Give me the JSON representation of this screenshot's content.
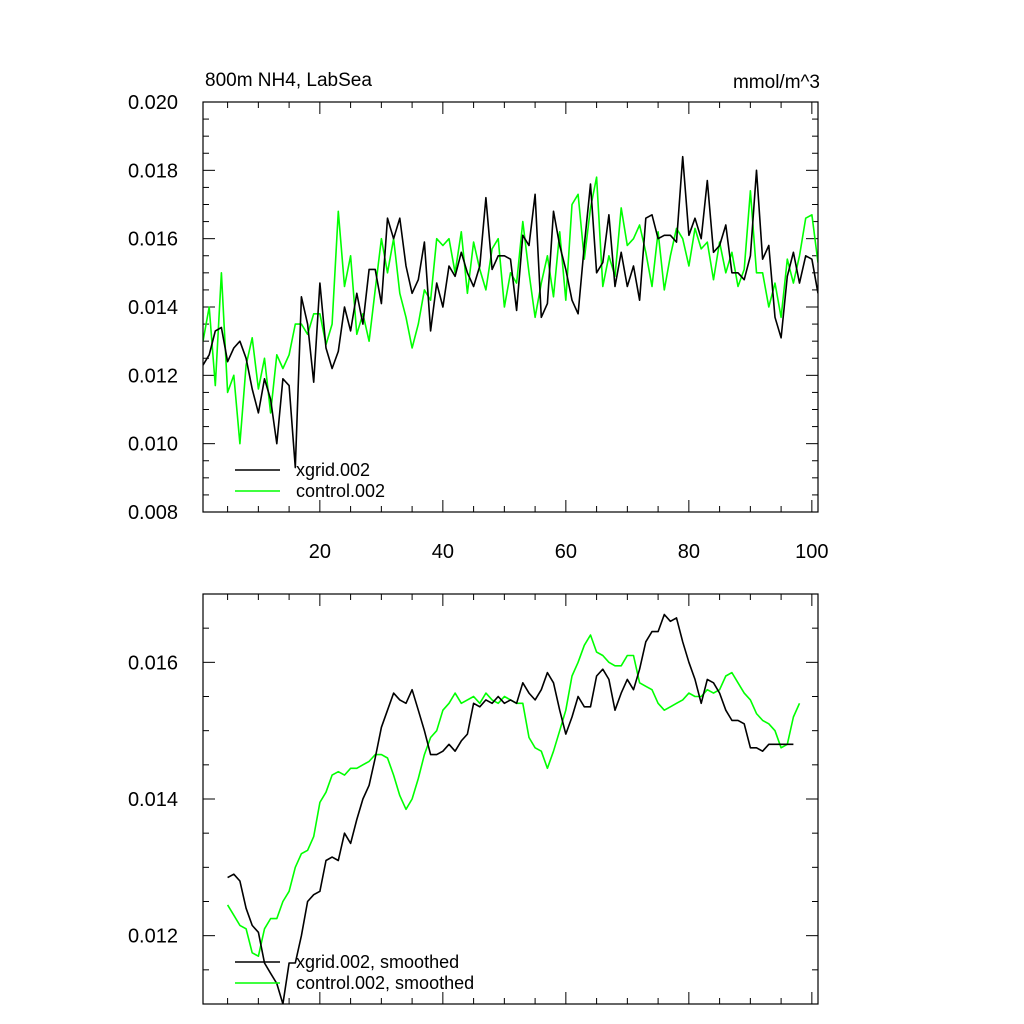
{
  "chart_data": [
    {
      "type": "line",
      "title": "800m NH4, LabSea",
      "units": "mmol/m^3",
      "xlim": [
        1,
        101
      ],
      "ylim": [
        0.008,
        0.02
      ],
      "x_ticks": [
        20,
        40,
        60,
        80,
        100
      ],
      "y_ticks": [
        0.008,
        0.01,
        0.012,
        0.014,
        0.016,
        0.018,
        0.02
      ],
      "y_tick_labels": [
        "0.008",
        "0.010",
        "0.012",
        "0.014",
        "0.016",
        "0.018",
        "0.020"
      ],
      "legend_position": "bottom-left",
      "series": [
        {
          "name": "xgrid.002",
          "color": "#000000",
          "x": [
            1,
            2,
            3,
            4,
            5,
            6,
            7,
            8,
            9,
            10,
            11,
            12,
            13,
            14,
            15,
            16,
            17,
            18,
            19,
            20,
            21,
            22,
            23,
            24,
            25,
            26,
            27,
            28,
            29,
            30,
            31,
            32,
            33,
            34,
            35,
            36,
            37,
            38,
            39,
            40,
            41,
            42,
            43,
            44,
            45,
            46,
            47,
            48,
            49,
            50,
            51,
            52,
            53,
            54,
            55,
            56,
            57,
            58,
            59,
            60,
            61,
            62,
            63,
            64,
            65,
            66,
            67,
            68,
            69,
            70,
            71,
            72,
            73,
            74,
            75,
            76,
            77,
            78,
            79,
            80,
            81,
            82,
            83,
            84,
            85,
            86,
            87,
            88,
            89,
            90,
            91,
            92,
            93,
            94,
            95,
            96,
            97,
            98,
            99,
            100,
            101
          ],
          "y": [
            0.0123,
            0.0126,
            0.0133,
            0.0134,
            0.0124,
            0.0128,
            0.013,
            0.0125,
            0.0116,
            0.0109,
            0.0119,
            0.0113,
            0.01,
            0.0119,
            0.0117,
            0.0093,
            0.0143,
            0.0135,
            0.0118,
            0.0147,
            0.0128,
            0.0122,
            0.0127,
            0.014,
            0.0133,
            0.0144,
            0.0135,
            0.0151,
            0.0151,
            0.0141,
            0.0166,
            0.016,
            0.0166,
            0.0152,
            0.0144,
            0.0148,
            0.0159,
            0.0133,
            0.0147,
            0.014,
            0.0152,
            0.0149,
            0.0156,
            0.015,
            0.0146,
            0.0152,
            0.0172,
            0.0151,
            0.0155,
            0.0155,
            0.0154,
            0.0139,
            0.0161,
            0.0158,
            0.0173,
            0.0137,
            0.0141,
            0.0168,
            0.0158,
            0.0151,
            0.0142,
            0.0138,
            0.0158,
            0.0176,
            0.015,
            0.0153,
            0.0167,
            0.0146,
            0.0156,
            0.0146,
            0.0152,
            0.0142,
            0.0166,
            0.0167,
            0.016,
            0.0161,
            0.0161,
            0.0159,
            0.0184,
            0.0161,
            0.0166,
            0.016,
            0.0177,
            0.0156,
            0.0158,
            0.0164,
            0.015,
            0.015,
            0.0148,
            0.0155,
            0.018,
            0.0154,
            0.0158,
            0.0137,
            0.0131,
            0.0149,
            0.0156,
            0.0147,
            0.0155,
            0.0154,
            0.0144
          ]
        },
        {
          "name": "control.002",
          "color": "#00ff00",
          "x": [
            1,
            2,
            3,
            4,
            5,
            6,
            7,
            8,
            9,
            10,
            11,
            12,
            13,
            14,
            15,
            16,
            17,
            18,
            19,
            20,
            21,
            22,
            23,
            24,
            25,
            26,
            27,
            28,
            29,
            30,
            31,
            32,
            33,
            34,
            35,
            36,
            37,
            38,
            39,
            40,
            41,
            42,
            43,
            44,
            45,
            46,
            47,
            48,
            49,
            50,
            51,
            52,
            53,
            54,
            55,
            56,
            57,
            58,
            59,
            60,
            61,
            62,
            63,
            64,
            65,
            66,
            67,
            68,
            69,
            70,
            71,
            72,
            73,
            74,
            75,
            76,
            77,
            78,
            79,
            80,
            81,
            82,
            83,
            84,
            85,
            86,
            87,
            88,
            89,
            90,
            91,
            92,
            93,
            94,
            95,
            96,
            97,
            98,
            99,
            100,
            101
          ],
          "y": [
            0.013,
            0.014,
            0.0117,
            0.015,
            0.0115,
            0.012,
            0.01,
            0.0123,
            0.0131,
            0.0116,
            0.0125,
            0.0109,
            0.0126,
            0.0122,
            0.0126,
            0.0135,
            0.0135,
            0.0132,
            0.0138,
            0.0138,
            0.0129,
            0.0135,
            0.0168,
            0.0146,
            0.0155,
            0.0132,
            0.0138,
            0.013,
            0.0145,
            0.016,
            0.015,
            0.016,
            0.0144,
            0.0137,
            0.0128,
            0.0135,
            0.0145,
            0.0142,
            0.016,
            0.0158,
            0.016,
            0.015,
            0.0162,
            0.0144,
            0.0159,
            0.0151,
            0.0145,
            0.0157,
            0.016,
            0.014,
            0.015,
            0.0147,
            0.0165,
            0.015,
            0.0137,
            0.0147,
            0.0155,
            0.0143,
            0.0162,
            0.0142,
            0.017,
            0.0173,
            0.0154,
            0.0169,
            0.0178,
            0.0146,
            0.0155,
            0.0149,
            0.0169,
            0.0158,
            0.016,
            0.0164,
            0.0156,
            0.0146,
            0.0162,
            0.0145,
            0.0155,
            0.0163,
            0.016,
            0.0152,
            0.0163,
            0.0157,
            0.0159,
            0.0148,
            0.0159,
            0.015,
            0.0156,
            0.0146,
            0.0151,
            0.0174,
            0.015,
            0.015,
            0.014,
            0.0147,
            0.0137,
            0.0154,
            0.0147,
            0.0155,
            0.0166,
            0.0167,
            0.0153
          ]
        }
      ]
    },
    {
      "type": "line",
      "xlim": [
        1,
        101
      ],
      "ylim": [
        0.011,
        0.017
      ],
      "x_ticks": [
        20,
        40,
        60,
        80,
        100
      ],
      "y_ticks": [
        0.012,
        0.014,
        0.016
      ],
      "y_tick_labels": [
        "0.012",
        "0.014",
        "0.016"
      ],
      "legend_position": "bottom-left",
      "series": [
        {
          "name": "xgrid.002, smoothed",
          "color": "#000000",
          "x": [
            5,
            6,
            7,
            8,
            9,
            10,
            11,
            12,
            13,
            14,
            15,
            16,
            17,
            18,
            19,
            20,
            21,
            22,
            23,
            24,
            25,
            26,
            27,
            28,
            29,
            30,
            31,
            32,
            33,
            34,
            35,
            36,
            37,
            38,
            39,
            40,
            41,
            42,
            43,
            44,
            45,
            46,
            47,
            48,
            49,
            50,
            51,
            52,
            53,
            54,
            55,
            56,
            57,
            58,
            59,
            60,
            61,
            62,
            63,
            64,
            65,
            66,
            67,
            68,
            69,
            70,
            71,
            72,
            73,
            74,
            75,
            76,
            77,
            78,
            79,
            80,
            81,
            82,
            83,
            84,
            85,
            86,
            87,
            88,
            89,
            90,
            91,
            92,
            93,
            94,
            95,
            96,
            97
          ],
          "y": [
            0.01285,
            0.0129,
            0.0128,
            0.0124,
            0.01215,
            0.01205,
            0.0116,
            0.01145,
            0.0113,
            0.011,
            0.0116,
            0.0116,
            0.012,
            0.0125,
            0.0126,
            0.01265,
            0.0131,
            0.01315,
            0.0131,
            0.0135,
            0.01335,
            0.0137,
            0.014,
            0.0142,
            0.0146,
            0.01505,
            0.0153,
            0.01555,
            0.01545,
            0.0154,
            0.0156,
            0.0153,
            0.015,
            0.01465,
            0.01465,
            0.0147,
            0.0148,
            0.0147,
            0.01485,
            0.01495,
            0.0154,
            0.01535,
            0.01545,
            0.0154,
            0.0155,
            0.0154,
            0.01545,
            0.0154,
            0.0157,
            0.01555,
            0.01545,
            0.0156,
            0.01585,
            0.0157,
            0.0153,
            0.01495,
            0.0152,
            0.0155,
            0.01535,
            0.01535,
            0.0158,
            0.0159,
            0.01575,
            0.0153,
            0.01555,
            0.01575,
            0.0156,
            0.0159,
            0.0163,
            0.01645,
            0.01645,
            0.0167,
            0.0166,
            0.01665,
            0.0163,
            0.016,
            0.01575,
            0.0154,
            0.01575,
            0.0157,
            0.01555,
            0.0153,
            0.01515,
            0.01515,
            0.0151,
            0.01475,
            0.01475,
            0.0147,
            0.0148,
            0.0148,
            0.0148,
            0.0148,
            0.0148
          ],
          "len_note": ""
        },
        {
          "name": "control.002, smoothed",
          "color": "#00ff00",
          "x": [
            5,
            6,
            7,
            8,
            9,
            10,
            11,
            12,
            13,
            14,
            15,
            16,
            17,
            18,
            19,
            20,
            21,
            22,
            23,
            24,
            25,
            26,
            27,
            28,
            29,
            30,
            31,
            32,
            33,
            34,
            35,
            36,
            37,
            38,
            39,
            40,
            41,
            42,
            43,
            44,
            45,
            46,
            47,
            48,
            49,
            50,
            51,
            52,
            53,
            54,
            55,
            56,
            57,
            58,
            59,
            60,
            61,
            62,
            63,
            64,
            65,
            66,
            67,
            68,
            69,
            70,
            71,
            72,
            73,
            74,
            75,
            76,
            77,
            78,
            79,
            80,
            81,
            82,
            83,
            84,
            85,
            86,
            87,
            88,
            89,
            90,
            91,
            92,
            93,
            94,
            95,
            96,
            97,
            98
          ],
          "y": [
            0.01245,
            0.0123,
            0.01215,
            0.0121,
            0.01175,
            0.0117,
            0.0121,
            0.01225,
            0.01225,
            0.0125,
            0.01265,
            0.013,
            0.0132,
            0.01325,
            0.01345,
            0.01395,
            0.0141,
            0.01435,
            0.0144,
            0.01435,
            0.01445,
            0.01445,
            0.0145,
            0.01455,
            0.01465,
            0.01465,
            0.0146,
            0.01435,
            0.01405,
            0.01385,
            0.014,
            0.0143,
            0.01465,
            0.0149,
            0.015,
            0.0153,
            0.0154,
            0.01555,
            0.0154,
            0.01545,
            0.0155,
            0.0154,
            0.01555,
            0.01545,
            0.0154,
            0.0155,
            0.01545,
            0.0154,
            0.0154,
            0.0149,
            0.01475,
            0.0147,
            0.01445,
            0.0147,
            0.015,
            0.0153,
            0.0158,
            0.016,
            0.01625,
            0.0164,
            0.01615,
            0.0161,
            0.016,
            0.01595,
            0.01595,
            0.0161,
            0.0161,
            0.0157,
            0.01565,
            0.0156,
            0.0154,
            0.0153,
            0.01535,
            0.0154,
            0.01545,
            0.01555,
            0.0155,
            0.0155,
            0.0156,
            0.01555,
            0.0156,
            0.0158,
            0.01585,
            0.0157,
            0.01555,
            0.01545,
            0.01525,
            0.01515,
            0.0151,
            0.015,
            0.01475,
            0.0148,
            0.0152,
            0.0154
          ]
        }
      ]
    }
  ]
}
